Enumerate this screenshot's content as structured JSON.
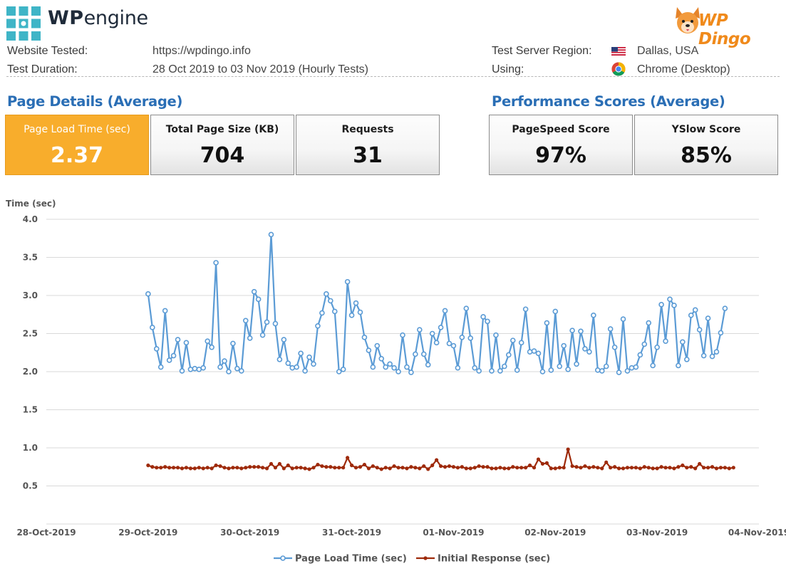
{
  "brand": {
    "logo_icon": "wpengine-grid-icon",
    "name_bold": "WP",
    "name_rest": "engine",
    "partner_name": "WP Dingo",
    "partner_icon": "dingo-mascot-icon"
  },
  "test_info": {
    "website_label": "Website Tested:",
    "website_value": "https://wpdingo.info",
    "duration_label": "Test Duration:",
    "duration_value": "28 Oct 2019 to 03 Nov 2019 (Hourly Tests)",
    "region_label": "Test Server Region:",
    "region_value": "Dallas, USA",
    "region_icon": "us-flag-icon",
    "browser_label": "Using:",
    "browser_value": "Chrome (Desktop)",
    "browser_icon": "chrome-icon"
  },
  "page_details": {
    "title": "Page Details (Average)",
    "cards": [
      {
        "label": "Page Load Time (sec)",
        "value": "2.37",
        "highlight": true
      },
      {
        "label": "Total Page Size (KB)",
        "value": "704"
      },
      {
        "label": "Requests",
        "value": "31"
      }
    ]
  },
  "performance": {
    "title": "Performance Scores (Average)",
    "cards": [
      {
        "label": "PageSpeed Score",
        "value": "97%"
      },
      {
        "label": "YSlow Score",
        "value": "85%"
      }
    ]
  },
  "colors": {
    "highlight": "#f8ad2c",
    "title_blue": "#2a6eb5",
    "series_load": "#5b9bd5",
    "series_initial": "#9e2a0b"
  },
  "chart_data": {
    "type": "line",
    "ylabel": "Time (sec)",
    "ylim": [
      0.0,
      4.0
    ],
    "yticks": [
      "4.0",
      "3.5",
      "3.0",
      "2.5",
      "2.0",
      "1.5",
      "1.0",
      "0.5"
    ],
    "xticks": [
      "28-Oct-2019",
      "29-Oct-2019",
      "30-Oct-2019",
      "31-Oct-2019",
      "01-Nov-2019",
      "02-Nov-2019",
      "03-Nov-2019",
      "04-Nov-2019"
    ],
    "grid": true,
    "legend_position": "bottom",
    "x_start": "2019-10-29 00:00",
    "x_step_hours": 1,
    "series": [
      {
        "name": "Page Load Time (sec)",
        "color": "#5b9bd5",
        "marker": "hollow-circle",
        "values": [
          3.02,
          2.58,
          2.3,
          2.06,
          2.8,
          2.15,
          2.21,
          2.42,
          2.01,
          2.38,
          2.03,
          2.04,
          2.03,
          2.05,
          2.4,
          2.32,
          3.43,
          2.06,
          2.14,
          2.0,
          2.37,
          2.04,
          2.01,
          2.67,
          2.44,
          3.05,
          2.95,
          2.48,
          2.65,
          3.8,
          2.63,
          2.16,
          2.42,
          2.11,
          2.05,
          2.06,
          2.24,
          2.01,
          2.19,
          2.1,
          2.6,
          2.77,
          3.02,
          2.93,
          2.79,
          2.0,
          2.03,
          3.18,
          2.74,
          2.9,
          2.78,
          2.45,
          2.28,
          2.06,
          2.34,
          2.17,
          2.06,
          2.1,
          2.05,
          2.0,
          2.48,
          2.06,
          1.99,
          2.23,
          2.55,
          2.23,
          2.09,
          2.5,
          2.38,
          2.58,
          2.8,
          2.37,
          2.34,
          2.05,
          2.45,
          2.83,
          2.44,
          2.05,
          2.01,
          2.72,
          2.66,
          2.01,
          2.48,
          2.01,
          2.07,
          2.22,
          2.41,
          2.02,
          2.38,
          2.82,
          2.26,
          2.27,
          2.24,
          2.0,
          2.64,
          2.02,
          2.79,
          2.07,
          2.34,
          2.03,
          2.54,
          2.1,
          2.53,
          2.3,
          2.26,
          2.74,
          2.02,
          2.01,
          2.07,
          2.56,
          2.32,
          1.99,
          2.69,
          2.01,
          2.05,
          2.06,
          2.22,
          2.36,
          2.64,
          2.08,
          2.32,
          2.88,
          2.4,
          2.95,
          2.87,
          2.08,
          2.39,
          2.16,
          2.74,
          2.81,
          2.55,
          2.21,
          2.7,
          2.2,
          2.26,
          2.51,
          2.83
        ],
        "values_initial_note": null
      },
      {
        "name": "Initial Response (sec)",
        "color": "#9e2a0b",
        "marker": "filled-circle",
        "values": [
          0.77,
          0.75,
          0.74,
          0.74,
          0.75,
          0.74,
          0.74,
          0.74,
          0.73,
          0.74,
          0.73,
          0.73,
          0.74,
          0.73,
          0.74,
          0.73,
          0.77,
          0.76,
          0.74,
          0.73,
          0.74,
          0.74,
          0.73,
          0.74,
          0.75,
          0.75,
          0.75,
          0.74,
          0.73,
          0.79,
          0.74,
          0.79,
          0.73,
          0.77,
          0.73,
          0.74,
          0.74,
          0.73,
          0.72,
          0.74,
          0.78,
          0.76,
          0.75,
          0.75,
          0.74,
          0.74,
          0.74,
          0.87,
          0.77,
          0.74,
          0.75,
          0.78,
          0.73,
          0.76,
          0.74,
          0.72,
          0.74,
          0.73,
          0.76,
          0.74,
          0.74,
          0.73,
          0.75,
          0.74,
          0.73,
          0.76,
          0.72,
          0.77,
          0.84,
          0.76,
          0.75,
          0.76,
          0.75,
          0.74,
          0.75,
          0.73,
          0.73,
          0.74,
          0.76,
          0.75,
          0.75,
          0.73,
          0.73,
          0.74,
          0.73,
          0.73,
          0.75,
          0.74,
          0.74,
          0.74,
          0.77,
          0.74,
          0.85,
          0.79,
          0.8,
          0.73,
          0.73,
          0.74,
          0.74,
          0.98,
          0.76,
          0.75,
          0.74,
          0.76,
          0.74,
          0.75,
          0.74,
          0.73,
          0.81,
          0.74,
          0.75,
          0.73,
          0.73,
          0.74,
          0.74,
          0.74,
          0.73,
          0.75,
          0.74,
          0.73,
          0.73,
          0.75,
          0.74,
          0.74,
          0.73,
          0.75,
          0.77,
          0.74,
          0.75,
          0.73,
          0.79,
          0.74,
          0.74,
          0.75,
          0.73,
          0.74,
          0.74,
          0.73,
          0.74
        ]
      }
    ]
  }
}
